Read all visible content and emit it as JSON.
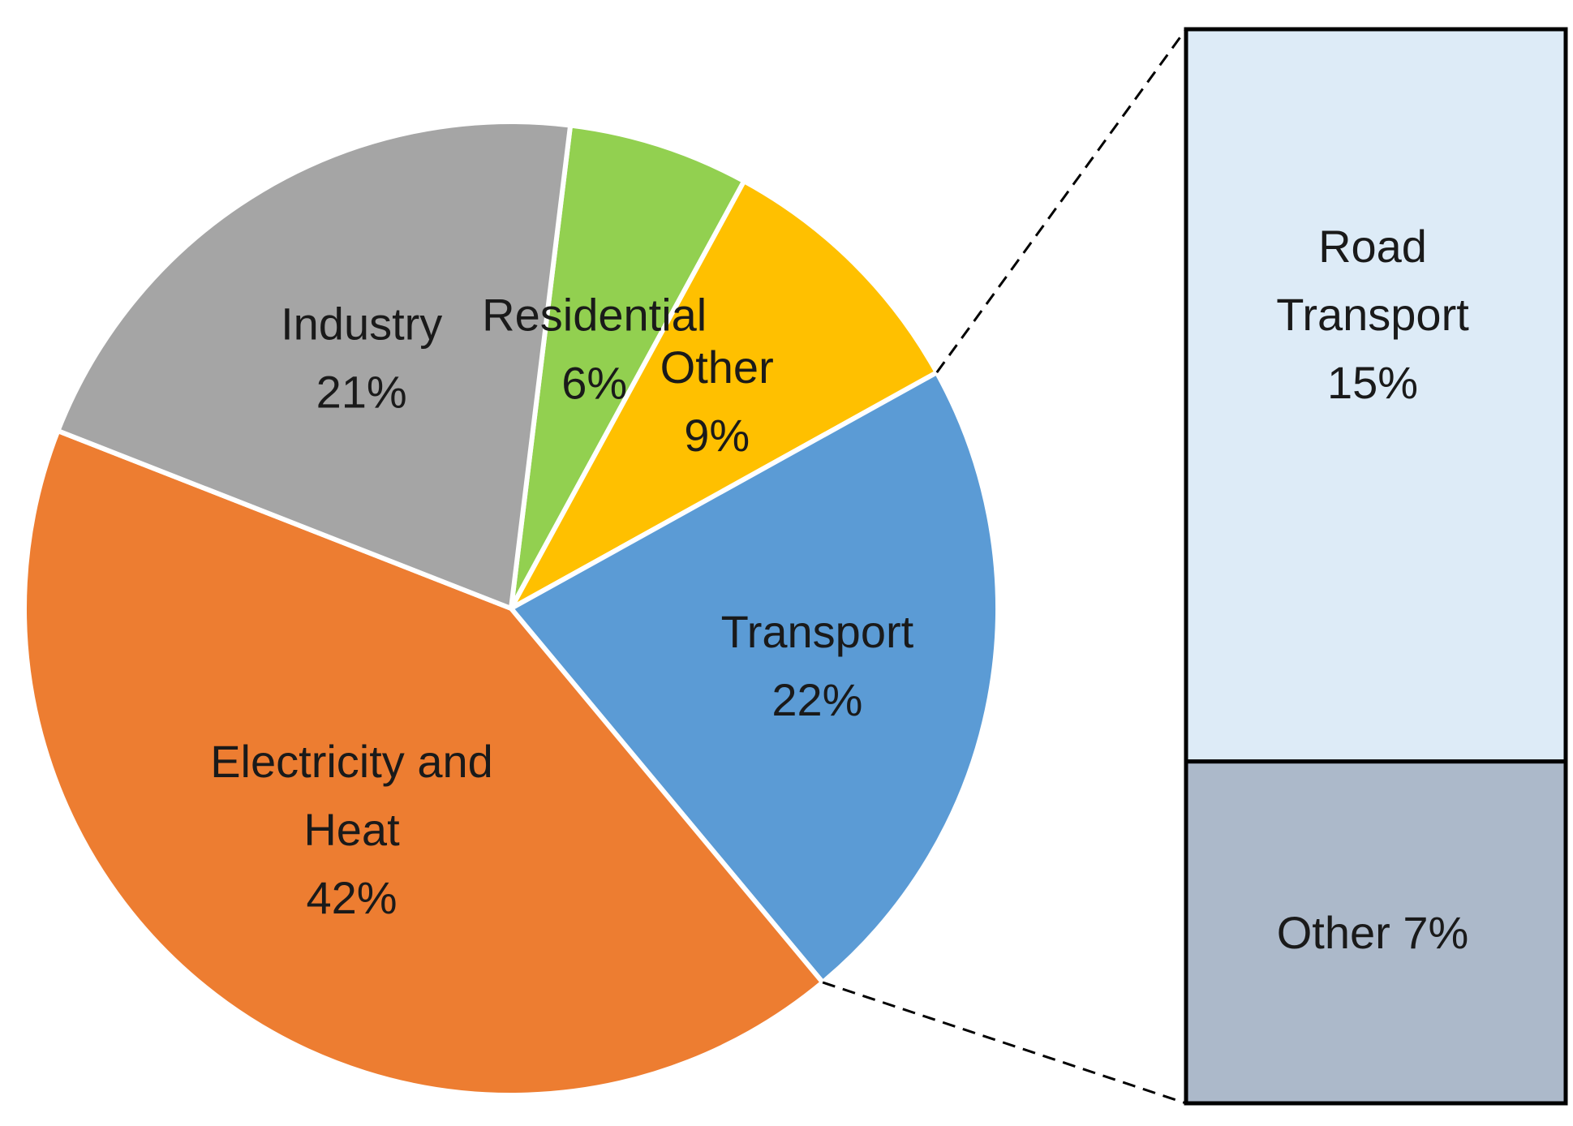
{
  "chart_data": [
    {
      "type": "pie",
      "title": "",
      "start_angle_deg": -83,
      "slices": [
        {
          "name": "Residential",
          "label_lines": [
            "Residential",
            "6%"
          ],
          "value": 6,
          "color": "#92d050"
        },
        {
          "name": "Other",
          "label_lines": [
            "Other",
            "9%"
          ],
          "value": 9,
          "color": "#ffc000"
        },
        {
          "name": "Transport",
          "label_lines": [
            "Transport",
            "22%"
          ],
          "value": 22,
          "color": "#5b9bd5"
        },
        {
          "name": "Electricity and Heat",
          "label_lines": [
            "Electricity and",
            "Heat",
            "42%"
          ],
          "value": 42,
          "color": "#ed7d31"
        },
        {
          "name": "Industry",
          "label_lines": [
            "Industry",
            "21%"
          ],
          "value": 21,
          "color": "#a5a5a5"
        }
      ]
    },
    {
      "type": "bar",
      "stacked": true,
      "breakdown_of": "Transport",
      "segments": [
        {
          "name": "Road Transport",
          "label_lines": [
            "Road",
            "Transport",
            "15%"
          ],
          "value": 15,
          "color": "#ddebf7"
        },
        {
          "name": "Other",
          "label_lines": [
            "Other 7%"
          ],
          "value": 7,
          "color": "#acb9ca"
        }
      ]
    }
  ]
}
